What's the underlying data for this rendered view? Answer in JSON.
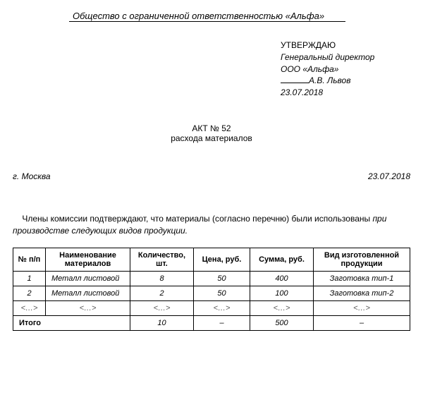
{
  "org_name": "Общество с ограниченной ответственностью «Альфа»",
  "approve": {
    "word": "УТВЕРЖДАЮ",
    "position": "Генеральный директор",
    "company": "ООО «Альфа»",
    "name": "А.В. Львов",
    "date": "23.07.2018"
  },
  "title": {
    "line1": "АКТ № 52",
    "line2": "расхода материалов"
  },
  "place": "г. Москва",
  "doc_date": "23.07.2018",
  "intro": {
    "part1": "Члены комиссии подтверждают, что материалы (согласно перечню) были использованы ",
    "part2": "при производстве следующих видов продукции.",
    "indent": "    "
  },
  "table": {
    "headers": [
      "№ п/п",
      "Наименование материалов",
      "Количество, шт.",
      "Цена, руб.",
      "Сумма, руб.",
      "Вид изготовленной продукции"
    ],
    "rows": [
      {
        "n": "1",
        "name": "Металл листовой",
        "qty": "8",
        "price": "50",
        "sum": "400",
        "product": "Заготовка тип-1"
      },
      {
        "n": "2",
        "name": "Металл листовой",
        "qty": "2",
        "price": "50",
        "sum": "100",
        "product": "Заготовка тип-2"
      }
    ],
    "dots": "<…>",
    "total_label": "Итого",
    "total": {
      "qty": "10",
      "price": "–",
      "sum": "500",
      "product": "–"
    }
  },
  "col_widths": [
    "46px",
    "120px",
    "90px",
    "80px",
    "90px",
    "auto"
  ]
}
